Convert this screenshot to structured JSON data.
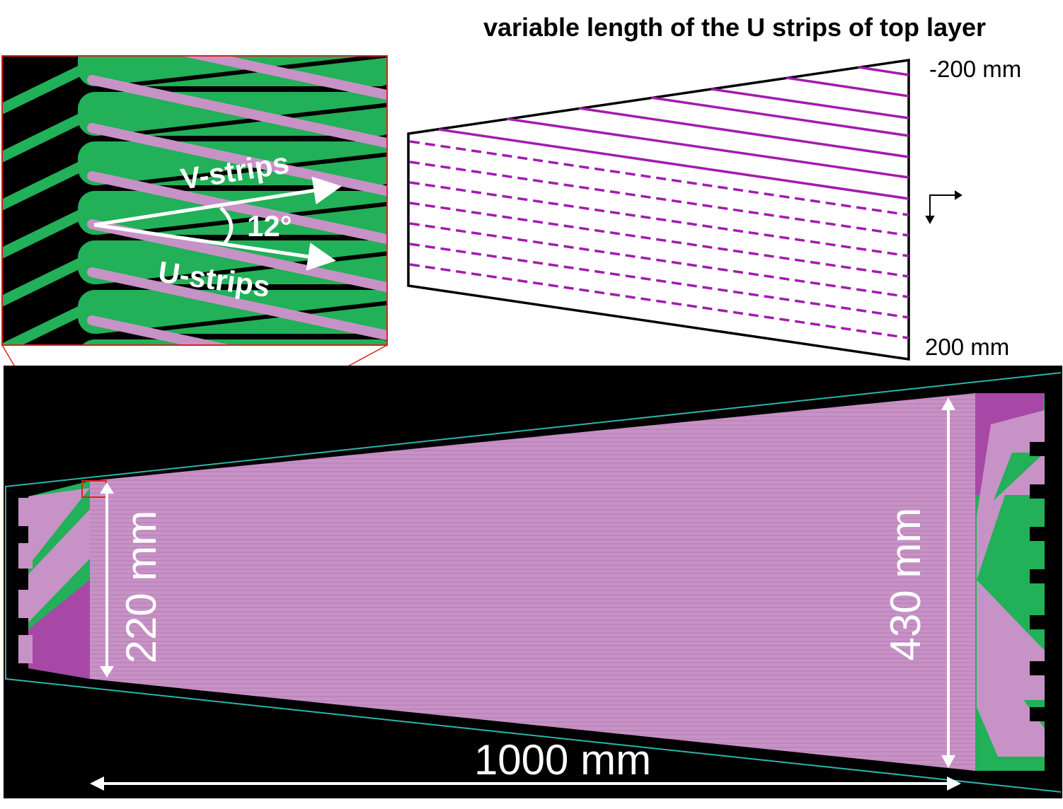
{
  "title": "variable length of the U strips of top layer",
  "axis_labels": {
    "top": "-200 mm",
    "bottom": "200 mm"
  },
  "inset": {
    "v_strips": "V-strips",
    "u_strips": "U-strips",
    "angle": "12°"
  },
  "dimensions": {
    "short_edge": "220 mm",
    "long_edge": "430 mm",
    "length": "1000 mm"
  },
  "colors": {
    "strip_purple": "#a21caf",
    "pad_green": "#22b058",
    "strip_pink": "#c792c6",
    "outline_teal": "#2bb5a9",
    "zoom_red": "#e0201a"
  }
}
